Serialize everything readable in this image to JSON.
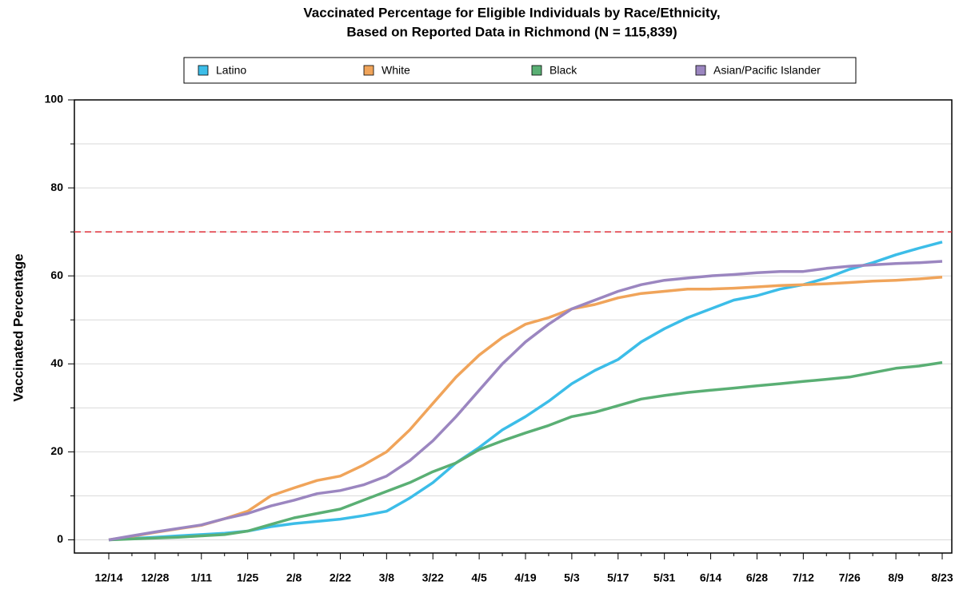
{
  "chart_data": {
    "type": "line",
    "title": "Vaccinated Percentage for Eligible Individuals by Race/Ethnicity,",
    "subtitle": "Based on Reported Data in Richmond (N = 115,839)",
    "y_label": "Vaccinated Percentage",
    "categories": [
      "12/14",
      null,
      "12/28",
      null,
      "1/11",
      null,
      "1/25",
      null,
      "2/8",
      null,
      "2/22",
      null,
      "3/8",
      null,
      "3/22",
      null,
      "4/5",
      null,
      "4/19",
      null,
      "5/3",
      null,
      "5/17",
      null,
      "5/31",
      null,
      "6/14",
      null,
      "6/28",
      null,
      "7/12",
      null,
      "7/26",
      null,
      "8/9",
      null,
      "8/23"
    ],
    "series": [
      {
        "name": "Latino",
        "color": "#3cbde8",
        "values": [
          0,
          0.3,
          0.6,
          0.9,
          1.2,
          1.5,
          2,
          3,
          3.7,
          4.2,
          4.7,
          5.5,
          6.5,
          9.5,
          13,
          17.5,
          21,
          25,
          28,
          31.5,
          35.5,
          38.5,
          41,
          45,
          48,
          50.5,
          52.5,
          54.5,
          55.5,
          57,
          58,
          59.5,
          61.5,
          63,
          64.8,
          66.3,
          67.7
        ]
      },
      {
        "name": "White",
        "color": "#f0a45a",
        "values": [
          0,
          0.8,
          1.7,
          2.5,
          3.3,
          4.8,
          6.5,
          10,
          11.8,
          13.5,
          14.5,
          17,
          20,
          25,
          31,
          37,
          42,
          46,
          49,
          50.5,
          52.5,
          53.5,
          55,
          56,
          56.5,
          57,
          57,
          57.2,
          57.5,
          57.8,
          58,
          58.2,
          58.5,
          58.8,
          59,
          59.3,
          59.7
        ]
      },
      {
        "name": "Black",
        "color": "#5aaf74",
        "values": [
          0,
          0.2,
          0.4,
          0.6,
          0.9,
          1.2,
          2,
          3.5,
          5,
          6,
          7,
          9,
          11,
          13,
          15.5,
          17.5,
          20.5,
          22.5,
          24.3,
          26,
          28,
          29,
          30.5,
          32,
          32.8,
          33.5,
          34,
          34.5,
          35,
          35.5,
          36,
          36.5,
          37,
          38,
          39,
          39.5,
          40.3
        ]
      },
      {
        "name": "Asian/Pacific Islander",
        "color": "#9b86c0",
        "values": [
          0,
          0.9,
          1.8,
          2.6,
          3.4,
          4.8,
          6,
          7.7,
          9,
          10.5,
          11.2,
          12.5,
          14.5,
          18,
          22.5,
          28,
          34,
          40,
          45,
          49,
          52.5,
          54.5,
          56.5,
          58,
          59,
          59.5,
          60,
          60.3,
          60.7,
          61,
          61,
          61.7,
          62.2,
          62.5,
          62.8,
          63,
          63.3
        ]
      }
    ],
    "ylim": [
      -3,
      100
    ],
    "yticks": [
      0,
      20,
      40,
      60,
      80,
      100
    ],
    "yminor": [
      10,
      30,
      50,
      70,
      90
    ],
    "grid": true,
    "reference_line": {
      "value": 70,
      "color": "#e0303a"
    },
    "legend": "top"
  }
}
